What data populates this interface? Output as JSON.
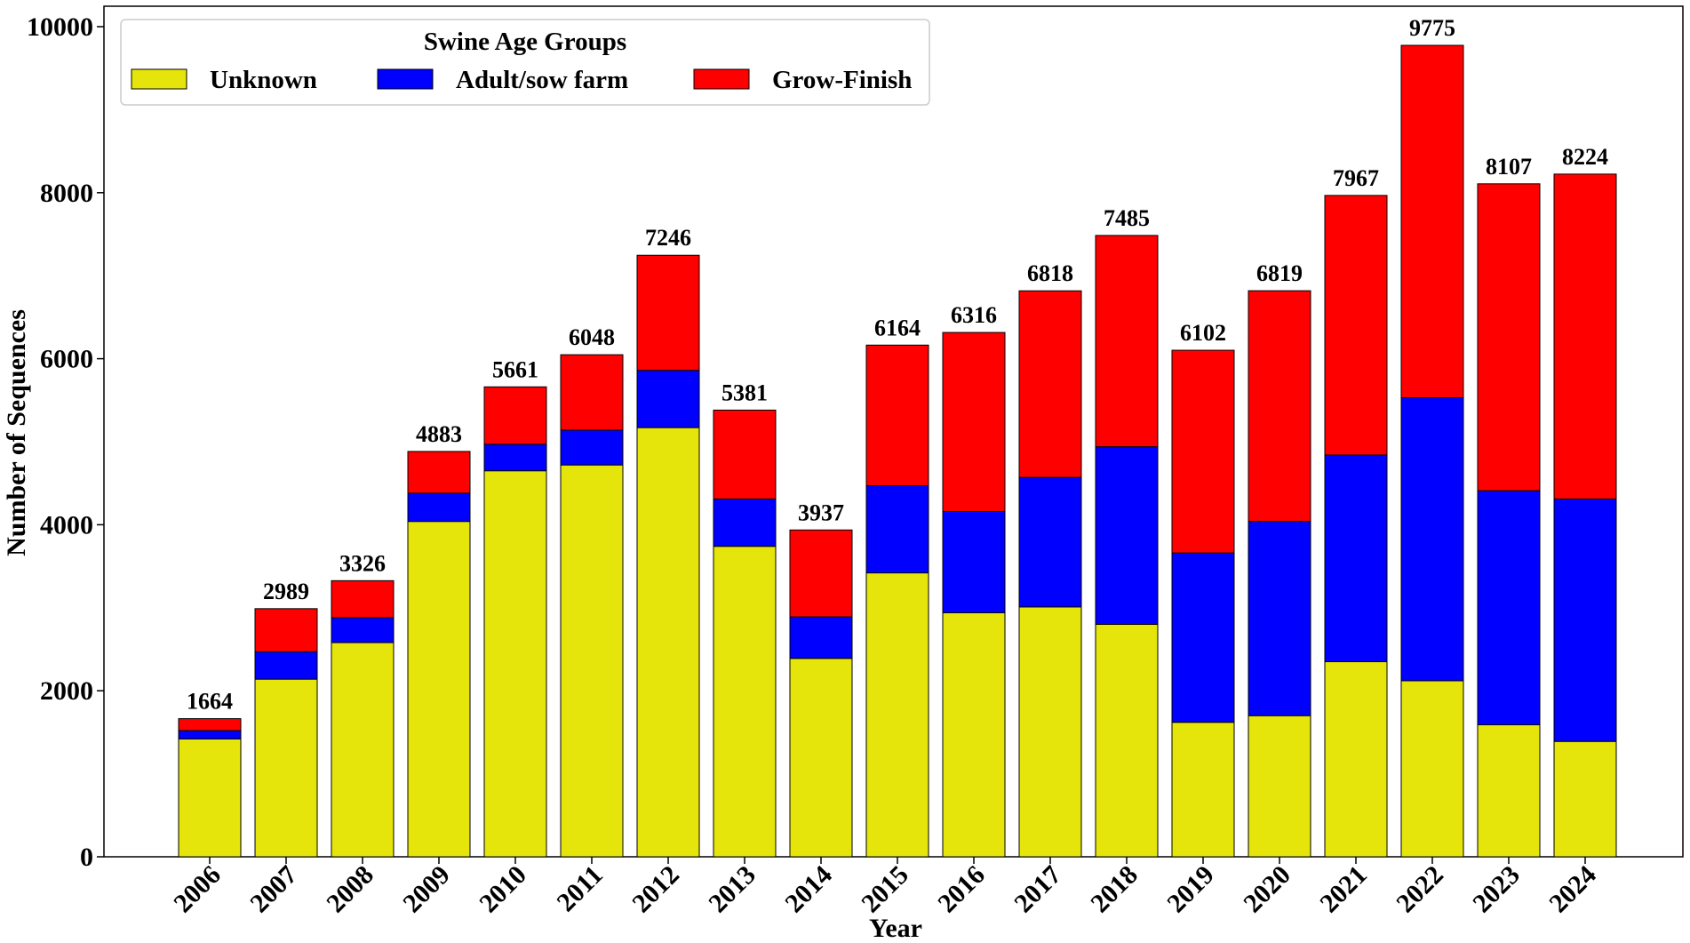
{
  "chart_data": {
    "type": "bar",
    "stacked": true,
    "title": "",
    "xlabel": "Year",
    "ylabel": "Number of Sequences",
    "ylim": [
      0,
      10000
    ],
    "yticks": [
      0,
      2000,
      4000,
      6000,
      8000,
      10000
    ],
    "grid": false,
    "legend": {
      "title": "Swine Age Groups",
      "placement": "top-left",
      "entries": [
        "Unknown",
        "Adult/sow farm",
        "Grow-Finish"
      ]
    },
    "categories": [
      "2006",
      "2007",
      "2008",
      "2009",
      "2010",
      "2011",
      "2012",
      "2013",
      "2014",
      "2015",
      "2016",
      "2017",
      "2018",
      "2019",
      "2020",
      "2021",
      "2022",
      "2023",
      "2024"
    ],
    "series": [
      {
        "name": "Unknown",
        "color": "#e5e50c",
        "values": [
          1420,
          2140,
          2580,
          4040,
          4650,
          4720,
          5170,
          3740,
          2390,
          3420,
          2940,
          3010,
          2800,
          1620,
          1700,
          2350,
          2120,
          1590,
          1390
        ]
      },
      {
        "name": "Adult/sow farm",
        "color": "#0000ff",
        "values": [
          100,
          330,
          300,
          340,
          320,
          420,
          690,
          570,
          500,
          1050,
          1220,
          1560,
          2140,
          2040,
          2340,
          2490,
          3410,
          2820,
          2920
        ]
      },
      {
        "name": "Grow-Finish",
        "color": "#ff0000",
        "values": [
          144,
          519,
          446,
          503,
          691,
          908,
          1386,
          1071,
          1047,
          1694,
          2156,
          2248,
          2545,
          2442,
          2779,
          3127,
          4245,
          3697,
          3914
        ]
      }
    ],
    "totals": [
      1664,
      2989,
      3326,
      4883,
      5661,
      6048,
      7246,
      5381,
      3937,
      6164,
      6316,
      6818,
      7485,
      6102,
      6819,
      7967,
      9775,
      8107,
      8224
    ]
  }
}
